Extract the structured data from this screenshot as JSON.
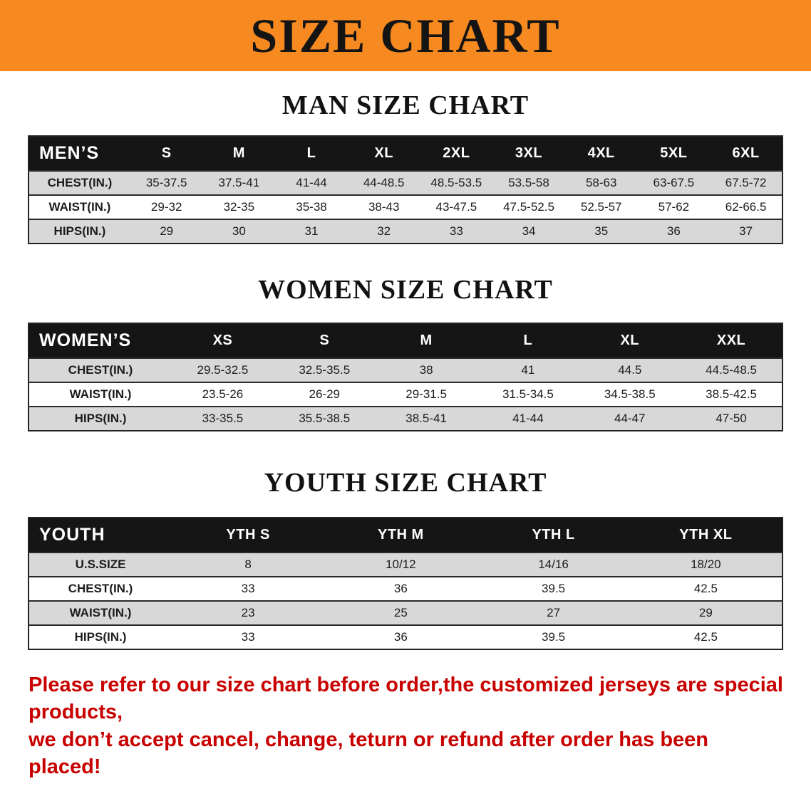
{
  "banner": {
    "title": "SIZE CHART"
  },
  "colors": {
    "banner-bg": "#f6891f",
    "header-bg": "#151515",
    "row-alt": "#d8d8d8",
    "footer-red": "#c80000",
    "ink": "#161616"
  },
  "sections": [
    {
      "id": "men",
      "heading": "MAN SIZE CHART",
      "table": {
        "header": [
          "MEN’S",
          "S",
          "M",
          "L",
          "XL",
          "2XL",
          "3XL",
          "4XL",
          "5XL",
          "6XL"
        ],
        "rows": [
          {
            "label": "CHEST(IN.)",
            "values": [
              "35-37.5",
              "37.5-41",
              "41-44",
              "44-48.5",
              "48.5-53.5",
              "53.5-58",
              "58-63",
              "63-67.5",
              "67.5-72"
            ]
          },
          {
            "label": "WAIST(IN.)",
            "values": [
              "29-32",
              "32-35",
              "35-38",
              "38-43",
              "43-47.5",
              "47.5-52.5",
              "52.5-57",
              "57-62",
              "62-66.5"
            ]
          },
          {
            "label": "HIPS(IN.)",
            "values": [
              "29",
              "30",
              "31",
              "32",
              "33",
              "34",
              "35",
              "36",
              "37"
            ]
          }
        ]
      }
    },
    {
      "id": "women",
      "heading": "WOMEN SIZE CHART",
      "table": {
        "header": [
          "WOMEN’S",
          "XS",
          "S",
          "M",
          "L",
          "XL",
          "XXL"
        ],
        "rows": [
          {
            "label": "CHEST(IN.)",
            "values": [
              "29.5-32.5",
              "32.5-35.5",
              "38",
              "41",
              "44.5",
              "44.5-48.5"
            ]
          },
          {
            "label": "WAIST(IN.)",
            "values": [
              "23.5-26",
              "26-29",
              "29-31.5",
              "31.5-34.5",
              "34.5-38.5",
              "38.5-42.5"
            ]
          },
          {
            "label": "HIPS(IN.)",
            "values": [
              "33-35.5",
              "35.5-38.5",
              "38.5-41",
              "41-44",
              "44-47",
              "47-50"
            ]
          }
        ]
      }
    },
    {
      "id": "youth",
      "heading": "YOUTH SIZE CHART",
      "table": {
        "header": [
          "YOUTH",
          "YTH S",
          "YTH M",
          "YTH L",
          "YTH XL"
        ],
        "rows": [
          {
            "label": "U.S.SIZE",
            "values": [
              "8",
              "10/12",
              "14/16",
              "18/20"
            ]
          },
          {
            "label": "CHEST(IN.)",
            "values": [
              "33",
              "36",
              "39.5",
              "42.5"
            ]
          },
          {
            "label": "WAIST(IN.)",
            "values": [
              "23",
              "25",
              "27",
              "29"
            ]
          },
          {
            "label": "HIPS(IN.)",
            "values": [
              "33",
              "36",
              "39.5",
              "42.5"
            ]
          }
        ]
      }
    }
  ],
  "footer": {
    "lines": [
      "Please refer to our size chart before order,the customized jerseys are special products,",
      "we don’t accept cancel, change, teturn or refund after order has been placed!"
    ]
  }
}
